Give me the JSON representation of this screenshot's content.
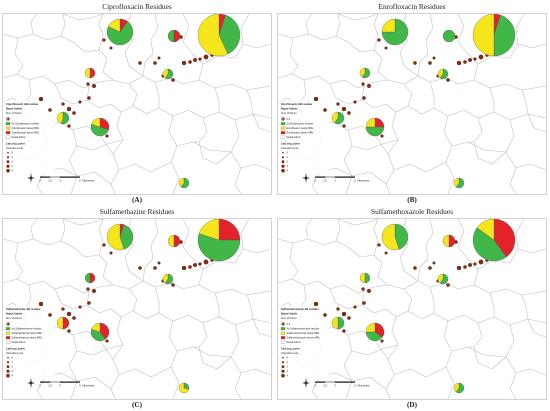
{
  "figure": {
    "colors": {
      "no_residue": "#41b649",
      "below_mrl": "#f5e61b",
      "above_mrl": "#e3232a",
      "point": "#8a2b10",
      "boundary": "#bdbdbd"
    },
    "scale": {
      "ticks": [
        "0",
        "1.5",
        "3",
        "6"
      ],
      "unit": "Kilometers"
    },
    "panels": [
      {
        "title": "Ciprofloxacin Residues",
        "label": "(A)",
        "legend": {
          "title": "Ciprofloxacin AB residue",
          "layer": "Nepal Admin",
          "sum_label": "Sum of Points",
          "items": [
            "No Ciprofloxacin residue",
            "Ciprofloxacin below MRL",
            "Ciprofloxacin above MRL",
            "Nepal Admin"
          ],
          "point_layer": "LatLong_point",
          "point_field": "Total abins posi",
          "point_classes": [
            "0",
            "1",
            "2",
            "3",
            "4"
          ]
        },
        "residue_shares": [
          {
            "none": 0.72,
            "below": 0.18,
            "above": 0.1
          },
          {
            "none": 0.5,
            "below": 0.0,
            "above": 0.5
          },
          {
            "none": 0.38,
            "below": 0.57,
            "above": 0.05
          },
          {
            "none": 0.0,
            "below": 0.5,
            "above": 0.5
          },
          {
            "none": 0.6,
            "below": 0.4,
            "above": 0.0
          },
          {
            "none": 0.55,
            "below": 0.45,
            "above": 0.0
          },
          {
            "none": 0.5,
            "below": 0.2,
            "above": 0.3
          },
          {
            "none": 0.6,
            "below": 0.4,
            "above": 0.0
          }
        ]
      },
      {
        "title": "Enrofloxacin Residues",
        "label": "(B)",
        "legend": {
          "title": "Enrofloxacin AB residue",
          "layer": "Nepal Admin",
          "sum_label": "Sum of Points",
          "size_label": "0-4",
          "items": [
            "No Enrofloxacin residue",
            "Enrofloxacin below MRL",
            "Enrofloxacin above MRL",
            "Nepal Admin"
          ],
          "point_layer": "LatLong_point",
          "point_field": "Total abins posi",
          "point_classes": [
            "0",
            "1",
            "2",
            "3",
            "4"
          ]
        },
        "residue_shares": [
          {
            "none": 0.75,
            "below": 0.25,
            "above": 0.0
          },
          {
            "none": 1.0,
            "below": 0.0,
            "above": 0.0
          },
          {
            "none": 0.45,
            "below": 0.5,
            "above": 0.05
          },
          {
            "none": 0.6,
            "below": 0.4,
            "above": 0.0
          },
          {
            "none": 0.6,
            "below": 0.4,
            "above": 0.0
          },
          {
            "none": 0.6,
            "below": 0.4,
            "above": 0.0
          },
          {
            "none": 0.5,
            "below": 0.25,
            "above": 0.25
          },
          {
            "none": 0.6,
            "below": 0.4,
            "above": 0.0
          }
        ]
      },
      {
        "title": "Sulfamethazine Residues",
        "label": "(C)",
        "legend": {
          "title": "Sulfamethazine AB residue",
          "layer": "Nepal Admin",
          "sum_label": "Sum of Points",
          "items": [
            "No Sulfamethazine residue",
            "Sulfamethazine below MRL",
            "Sulfamethazine above MRL",
            "Nepal Admin"
          ],
          "point_layer": "LatLong_point",
          "point_field": "Total abins posi",
          "point_classes": [
            "0",
            "1",
            "2",
            "3",
            "4"
          ]
        },
        "residue_shares": [
          {
            "none": 0.4,
            "below": 0.55,
            "above": 0.05
          },
          {
            "none": 0.0,
            "below": 0.5,
            "above": 0.5
          },
          {
            "none": 0.55,
            "below": 0.2,
            "above": 0.25
          },
          {
            "none": 0.5,
            "below": 0.0,
            "above": 0.5
          },
          {
            "none": 0.6,
            "below": 0.4,
            "above": 0.0
          },
          {
            "none": 0.0,
            "below": 0.5,
            "above": 0.5
          },
          {
            "none": 0.4,
            "below": 0.2,
            "above": 0.4
          },
          {
            "none": 0.3,
            "below": 0.7,
            "above": 0.0
          }
        ]
      },
      {
        "title": "Sulfamethoxazole Residues",
        "label": "(D)",
        "legend": {
          "title": "Sulfamethoxazole AB residue",
          "layer": "Nepal Admin",
          "sum_label": "Sum of Points",
          "size_label": "0-4",
          "items": [
            "No Sulfamethoxazole residue",
            "Sulfamethoxazole below MRL",
            "Sulfamethoxazole above MRL",
            "Nepal Admin"
          ],
          "point_layer": "LatLong_point",
          "point_field": "Total abins posi",
          "point_classes": [
            "0",
            "1",
            "2",
            "3",
            "4"
          ]
        },
        "residue_shares": [
          {
            "none": 0.45,
            "below": 0.55,
            "above": 0.0
          },
          {
            "none": 0.0,
            "below": 0.5,
            "above": 0.5
          },
          {
            "none": 0.45,
            "below": 0.15,
            "above": 0.4
          },
          {
            "none": 0.5,
            "below": 0.5,
            "above": 0.0
          },
          {
            "none": 0.6,
            "below": 0.4,
            "above": 0.0
          },
          {
            "none": 0.5,
            "below": 0.5,
            "above": 0.0
          },
          {
            "none": 0.4,
            "below": 0.25,
            "above": 0.35
          },
          {
            "none": 0.6,
            "below": 0.4,
            "above": 0.0
          }
        ]
      }
    ]
  }
}
